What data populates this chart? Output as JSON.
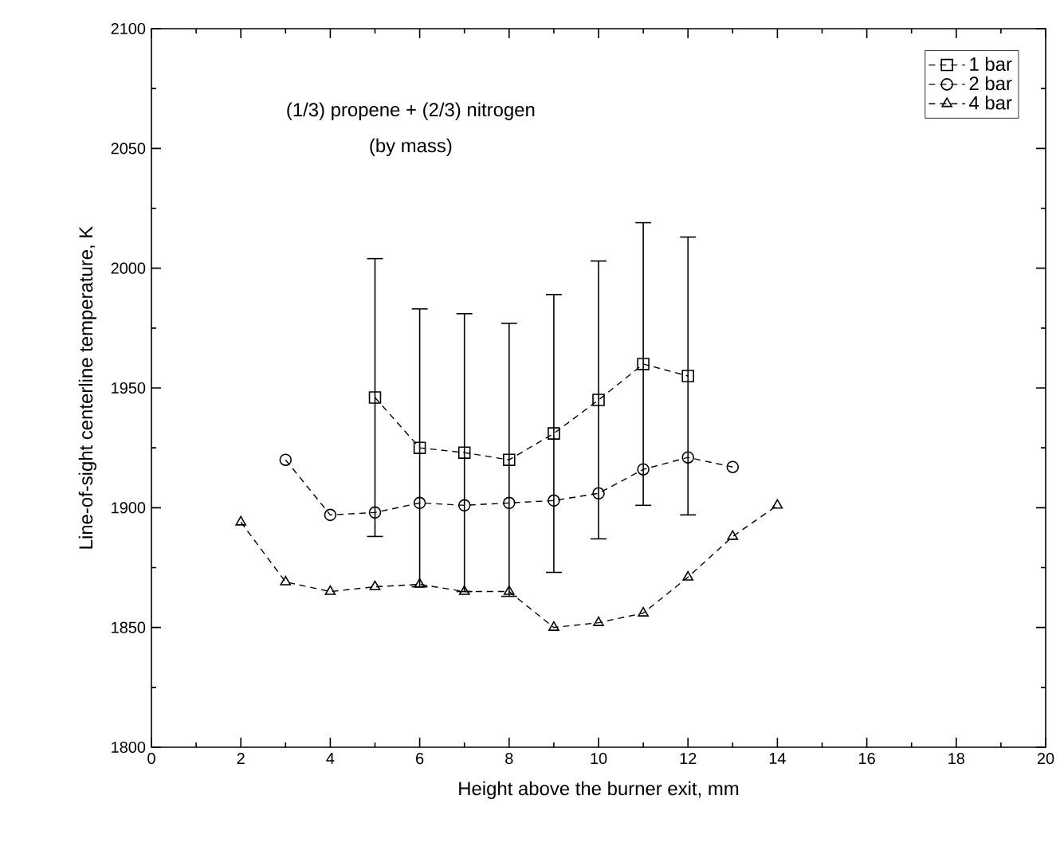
{
  "chart_data": {
    "type": "line",
    "xlabel": "Height above the burner exit, mm",
    "ylabel": "Line-of-sight centerline temperature, K",
    "annotations": [
      "(1/3) propene + (2/3) nitrogen",
      "(by mass)"
    ],
    "xlim": [
      0,
      20
    ],
    "xticks": [
      0,
      2,
      4,
      6,
      8,
      10,
      12,
      14,
      16,
      18,
      20
    ],
    "ylim": [
      1800,
      2100
    ],
    "yticks": [
      1800,
      1850,
      1900,
      1950,
      2000,
      2050,
      2100
    ],
    "grid": false,
    "legend": "top right",
    "line_style": "dashed",
    "series": [
      {
        "name": "1 bar",
        "color": "#000000",
        "marker": "square",
        "x": [
          5,
          6,
          7,
          8,
          9,
          10,
          11,
          12
        ],
        "values": [
          1946,
          1925,
          1923,
          1920,
          1931,
          1945,
          1960,
          1955
        ],
        "errors": [
          58,
          58,
          58,
          57,
          58,
          58,
          59,
          58
        ]
      },
      {
        "name": "2 bar",
        "color": "#000000",
        "marker": "circle",
        "x": [
          3,
          4,
          5,
          6,
          7,
          8,
          9,
          10,
          11,
          12,
          13
        ],
        "values": [
          1920,
          1897,
          1898,
          1902,
          1901,
          1902,
          1903,
          1906,
          1916,
          1921,
          1917
        ]
      },
      {
        "name": "4 bar",
        "color": "#000000",
        "marker": "triangle",
        "x": [
          2,
          3,
          4,
          5,
          6,
          7,
          8,
          9,
          10,
          11,
          12,
          13,
          14
        ],
        "values": [
          1894,
          1869,
          1865,
          1867,
          1868,
          1865,
          1865,
          1850,
          1852,
          1856,
          1871,
          1888,
          1901
        ]
      }
    ]
  }
}
